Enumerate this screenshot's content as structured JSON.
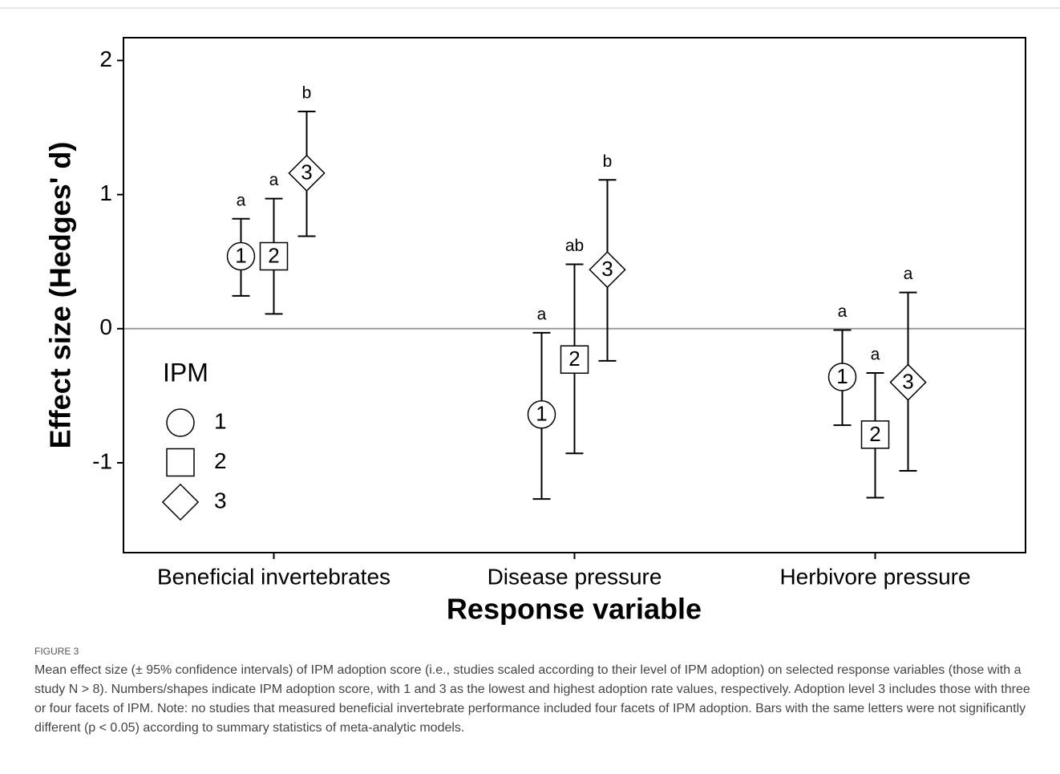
{
  "chart_data": {
    "type": "errorbar",
    "ylabel": "Effect size (Hedges' d)",
    "xlabel": "Response variable",
    "categories": [
      "Beneficial invertebrates",
      "Disease pressure",
      "Herbivore pressure"
    ],
    "ylim": [
      -1.67,
      2.17
    ],
    "yticks": [
      -1,
      0,
      1,
      2
    ],
    "hline": 0,
    "legend_title": "IPM",
    "legend": "lower left",
    "series": [
      {
        "name": "1",
        "shape": "circle",
        "color": "#000000",
        "values": [
          0.54,
          -0.64,
          -0.36
        ],
        "lower": [
          0.245,
          -1.27,
          -0.72
        ],
        "upper": [
          0.82,
          -0.03,
          -0.01
        ],
        "letters": [
          "a",
          "a",
          "a"
        ]
      },
      {
        "name": "2",
        "shape": "square",
        "color": "#000000",
        "values": [
          0.54,
          -0.23,
          -0.79
        ],
        "lower": [
          0.11,
          -0.93,
          -1.26
        ],
        "upper": [
          0.97,
          0.48,
          -0.33
        ],
        "letters": [
          "a",
          "ab",
          "a"
        ]
      },
      {
        "name": "3",
        "shape": "diamond",
        "color": "#000000",
        "values": [
          1.16,
          0.44,
          -0.4
        ],
        "lower": [
          0.69,
          -0.24,
          -1.06
        ],
        "upper": [
          1.62,
          1.11,
          0.27
        ],
        "letters": [
          "b",
          "b",
          "a"
        ]
      }
    ]
  },
  "caption": {
    "label": "FIGURE 3",
    "text": "Mean effect size (± 95% confidence intervals) of IPM adoption score (i.e., studies scaled according to their level of IPM adoption) on selected response variables (those with a study N > 8). Numbers/shapes indicate IPM adoption score, with 1 and 3 as the lowest and highest adoption rate values, respectively. Adoption level 3 includes those with three or four facets of IPM. Note: no studies that measured beneficial invertebrate performance included four facets of IPM adoption. Bars with the same letters were not significantly different (p < 0.05) according to summary statistics of meta-analytic models."
  }
}
